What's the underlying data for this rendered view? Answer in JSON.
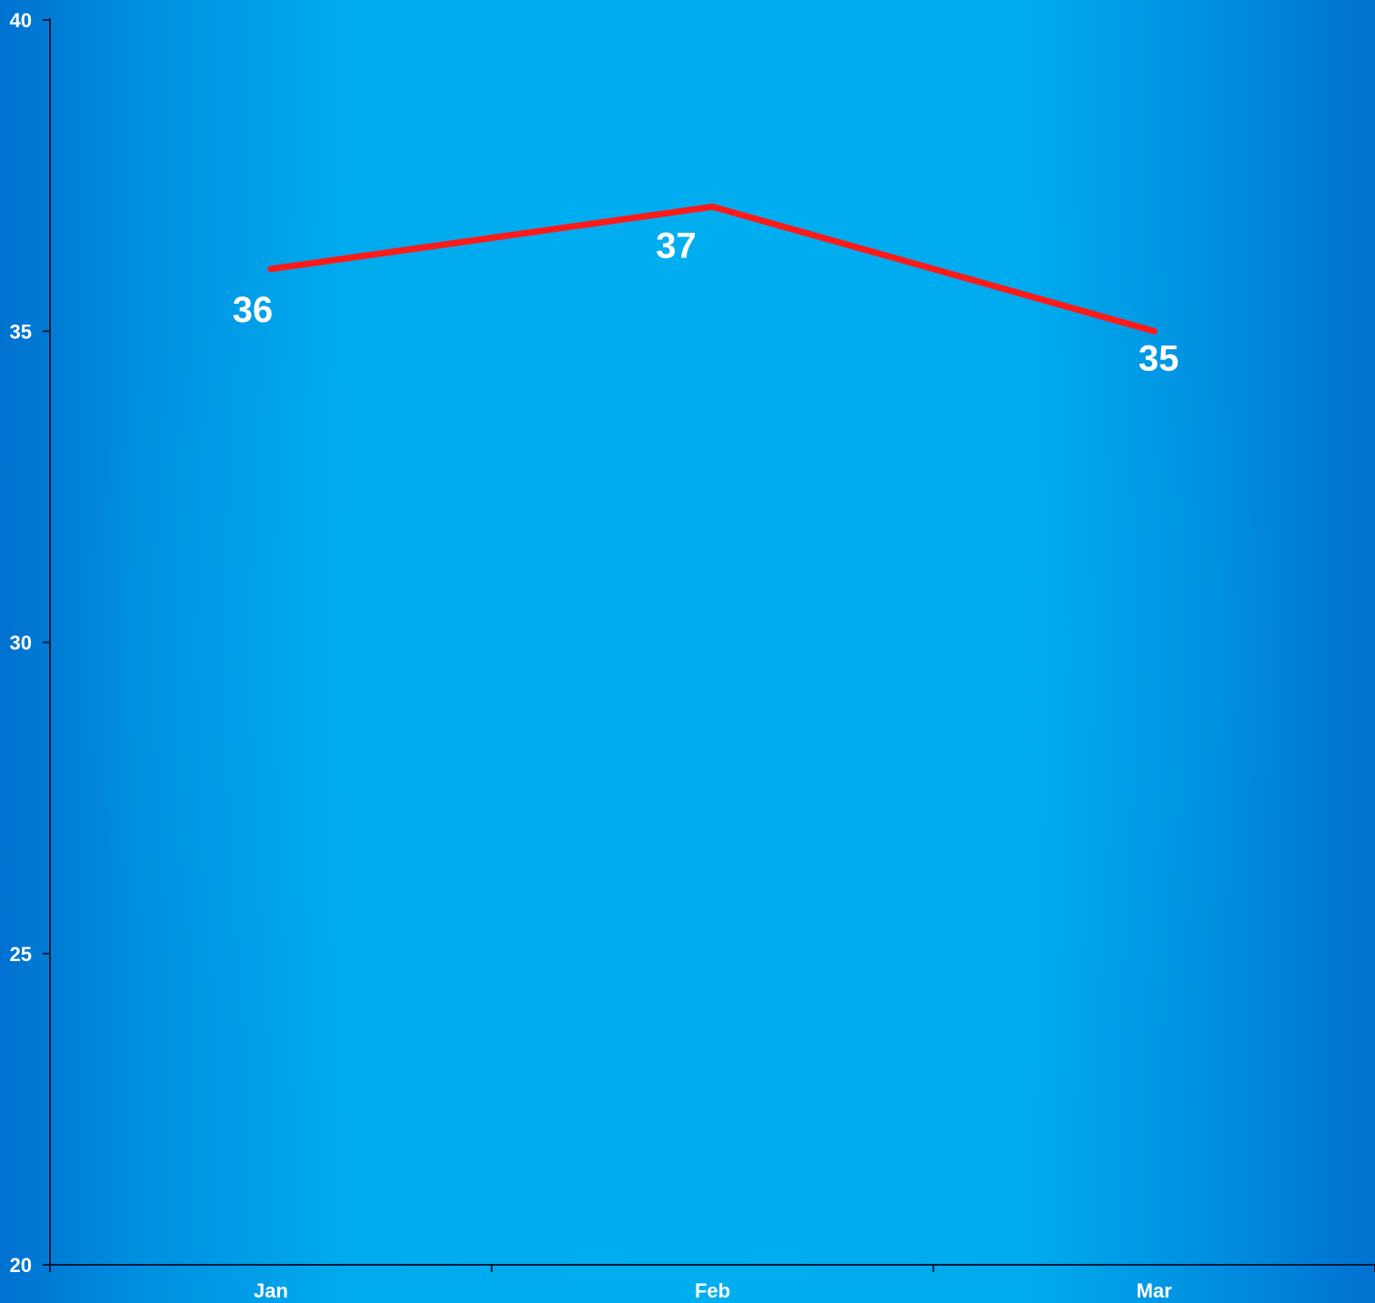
{
  "chart_data": {
    "type": "line",
    "categories": [
      "Jan",
      "Feb",
      "Mar"
    ],
    "series": [
      {
        "values": [
          36,
          37,
          35
        ],
        "color": "#ff1a1a"
      }
    ],
    "data_labels": [
      "36",
      "37",
      "35"
    ],
    "ylim": [
      20,
      40
    ],
    "y_ticks": [
      20,
      25,
      30,
      35,
      40
    ],
    "grid": false,
    "legend": "none",
    "title": "",
    "xlabel": "",
    "ylabel": ""
  },
  "colors": {
    "background_center": "#00aef0",
    "background_edge": "#0071d0",
    "axis": "#0a1a3a",
    "text": "#ffffff"
  }
}
